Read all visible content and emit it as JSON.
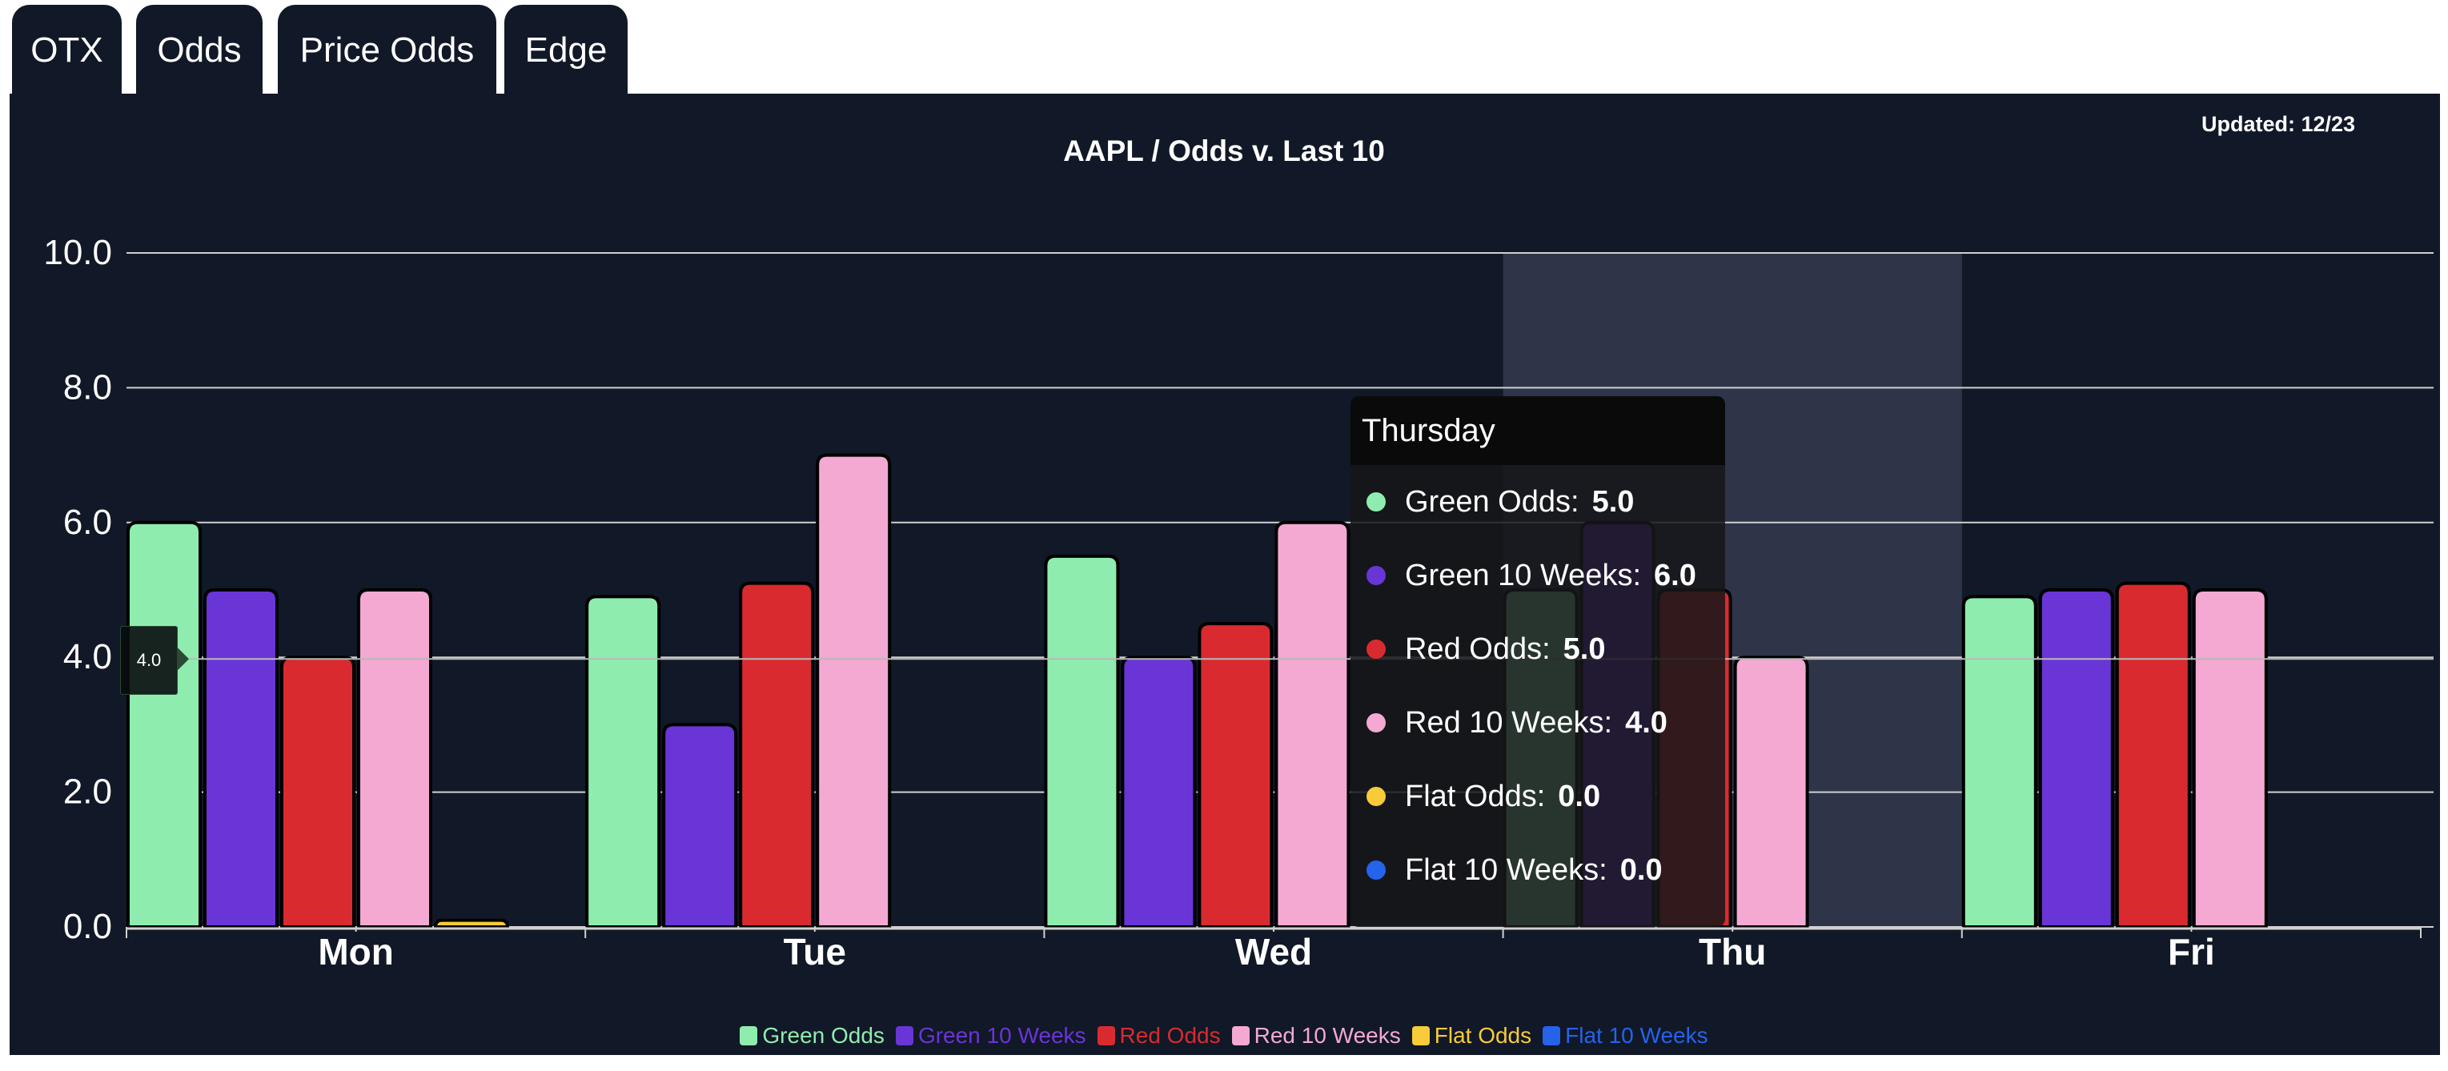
{
  "tabs": [
    {
      "label": "OTX"
    },
    {
      "label": "Odds"
    },
    {
      "label": "Price Odds"
    },
    {
      "label": "Edge"
    }
  ],
  "updated": "Updated: 12/23",
  "crosshair_label": "4.0",
  "tooltip": {
    "title": "Thursday",
    "rows": [
      {
        "label": "Green Odds:",
        "value": "5.0"
      },
      {
        "label": "Green 10 Weeks:",
        "value": "6.0"
      },
      {
        "label": "Red Odds:",
        "value": "5.0"
      },
      {
        "label": "Red 10 Weeks:",
        "value": "4.0"
      },
      {
        "label": "Flat Odds:",
        "value": "0.0"
      },
      {
        "label": "Flat 10 Weeks:",
        "value": "0.0"
      }
    ]
  },
  "chart_data": {
    "type": "bar",
    "title": "AAPL / Odds v. Last 10",
    "xlabel": "",
    "ylabel": "",
    "ylim": [
      0,
      10
    ],
    "yticks": [
      "0.0",
      "2.0",
      "4.0",
      "6.0",
      "8.0",
      "10.0"
    ],
    "grid": true,
    "legend": "bottom",
    "categories": [
      "Mon",
      "Tue",
      "Wed",
      "Thu",
      "Fri"
    ],
    "highlighted_category": "Thu",
    "series": [
      {
        "name": "Green Odds",
        "color": "#8EEDAE",
        "values": [
          6.0,
          4.9,
          5.5,
          5.0,
          4.9
        ]
      },
      {
        "name": "Green 10 Weeks",
        "color": "#6A35D6",
        "values": [
          5.0,
          3.0,
          4.0,
          6.0,
          5.0
        ]
      },
      {
        "name": "Red Odds",
        "color": "#D92B2F",
        "values": [
          4.0,
          5.1,
          4.5,
          5.0,
          5.1
        ]
      },
      {
        "name": "Red 10 Weeks",
        "color": "#F4A9D2",
        "values": [
          5.0,
          7.0,
          6.0,
          4.0,
          5.0
        ]
      },
      {
        "name": "Flat Odds",
        "color": "#F8CB3A",
        "values": [
          0.1,
          0.0,
          0.0,
          0.0,
          0.0
        ]
      },
      {
        "name": "Flat 10 Weeks",
        "color": "#2563EB",
        "values": [
          0.0,
          0.0,
          0.0,
          0.0,
          0.0
        ]
      }
    ]
  }
}
